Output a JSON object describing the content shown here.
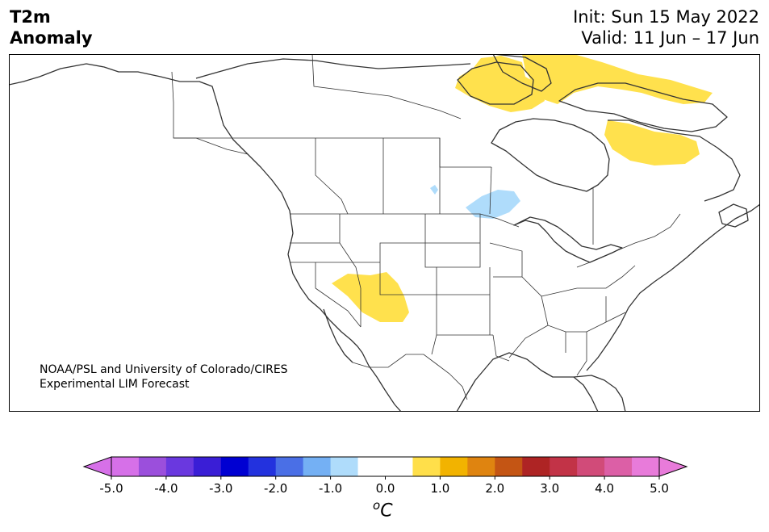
{
  "header": {
    "title_line1": "T2m",
    "title_line2": "Anomaly",
    "init": "Init: Sun 15 May 2022",
    "valid": "Valid: 11 Jun – 17 Jun"
  },
  "credit": {
    "line1": "NOAA/PSL and University of Colorado/CIRES",
    "line2": "Experimental LIM Forecast"
  },
  "colorbar": {
    "unit_base": "C",
    "unit_sup": "o",
    "min": -5.0,
    "max": 5.0,
    "ticks": [
      "-5.0",
      "-4.0",
      "-3.0",
      "-2.0",
      "-1.0",
      "0.0",
      "1.0",
      "2.0",
      "3.0",
      "4.0",
      "5.0"
    ],
    "colors": [
      "#d670e8",
      "#9b4fdc",
      "#6a38df",
      "#3a1ed6",
      "#0000d2",
      "#2332de",
      "#4a6fe6",
      "#74b0f4",
      "#afdcfb",
      "#ffffff",
      "#ffffff",
      "#ffdf4a",
      "#f2b300",
      "#df8410",
      "#c45514",
      "#ae2424",
      "#c23347",
      "#d14b79",
      "#dc5fa6",
      "#e87bda"
    ],
    "under_color": "#d670e8",
    "over_color": "#e87bda"
  },
  "map_colors": {
    "warm_anomaly": "#ffe14d",
    "cool_anomaly": "#afdcfb",
    "land": "#ffffff",
    "lines": "#333333"
  }
}
